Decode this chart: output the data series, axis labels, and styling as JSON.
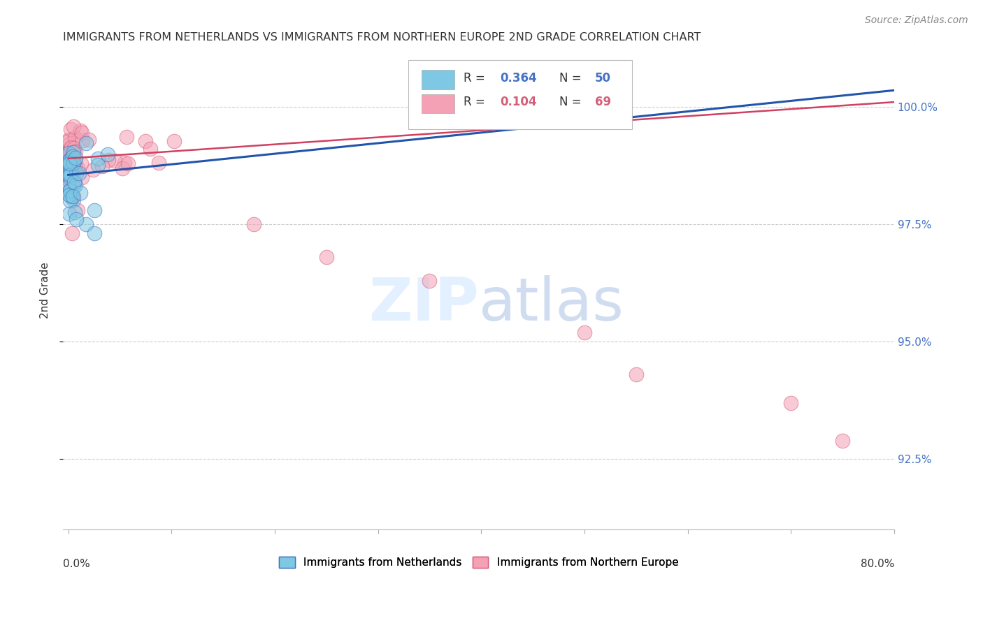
{
  "title": "IMMIGRANTS FROM NETHERLANDS VS IMMIGRANTS FROM NORTHERN EUROPE 2ND GRADE CORRELATION CHART",
  "source": "Source: ZipAtlas.com",
  "ylabel": "2nd Grade",
  "ytick_values": [
    92.5,
    95.0,
    97.5,
    100.0
  ],
  "ytick_labels": [
    "92.5%",
    "95.0%",
    "97.5%",
    "100.0%"
  ],
  "xlim": [
    0.0,
    80.0
  ],
  "ylim": [
    91.0,
    101.2
  ],
  "color_blue": "#7ec8e3",
  "color_pink": "#f4a0b5",
  "edge_blue": "#4472c4",
  "edge_pink": "#d45f7a",
  "line_blue": "#2255aa",
  "line_pink": "#d04060",
  "background": "#ffffff",
  "legend_r1": "0.364",
  "legend_n1": "50",
  "legend_r2": "0.104",
  "legend_n2": "69",
  "neth_line_x0": 0.0,
  "neth_line_y0": 98.55,
  "neth_line_x1": 80.0,
  "neth_line_y1": 100.35,
  "noreur_line_x0": 0.0,
  "noreur_line_y0": 98.9,
  "noreur_line_x1": 80.0,
  "noreur_line_y1": 100.1
}
